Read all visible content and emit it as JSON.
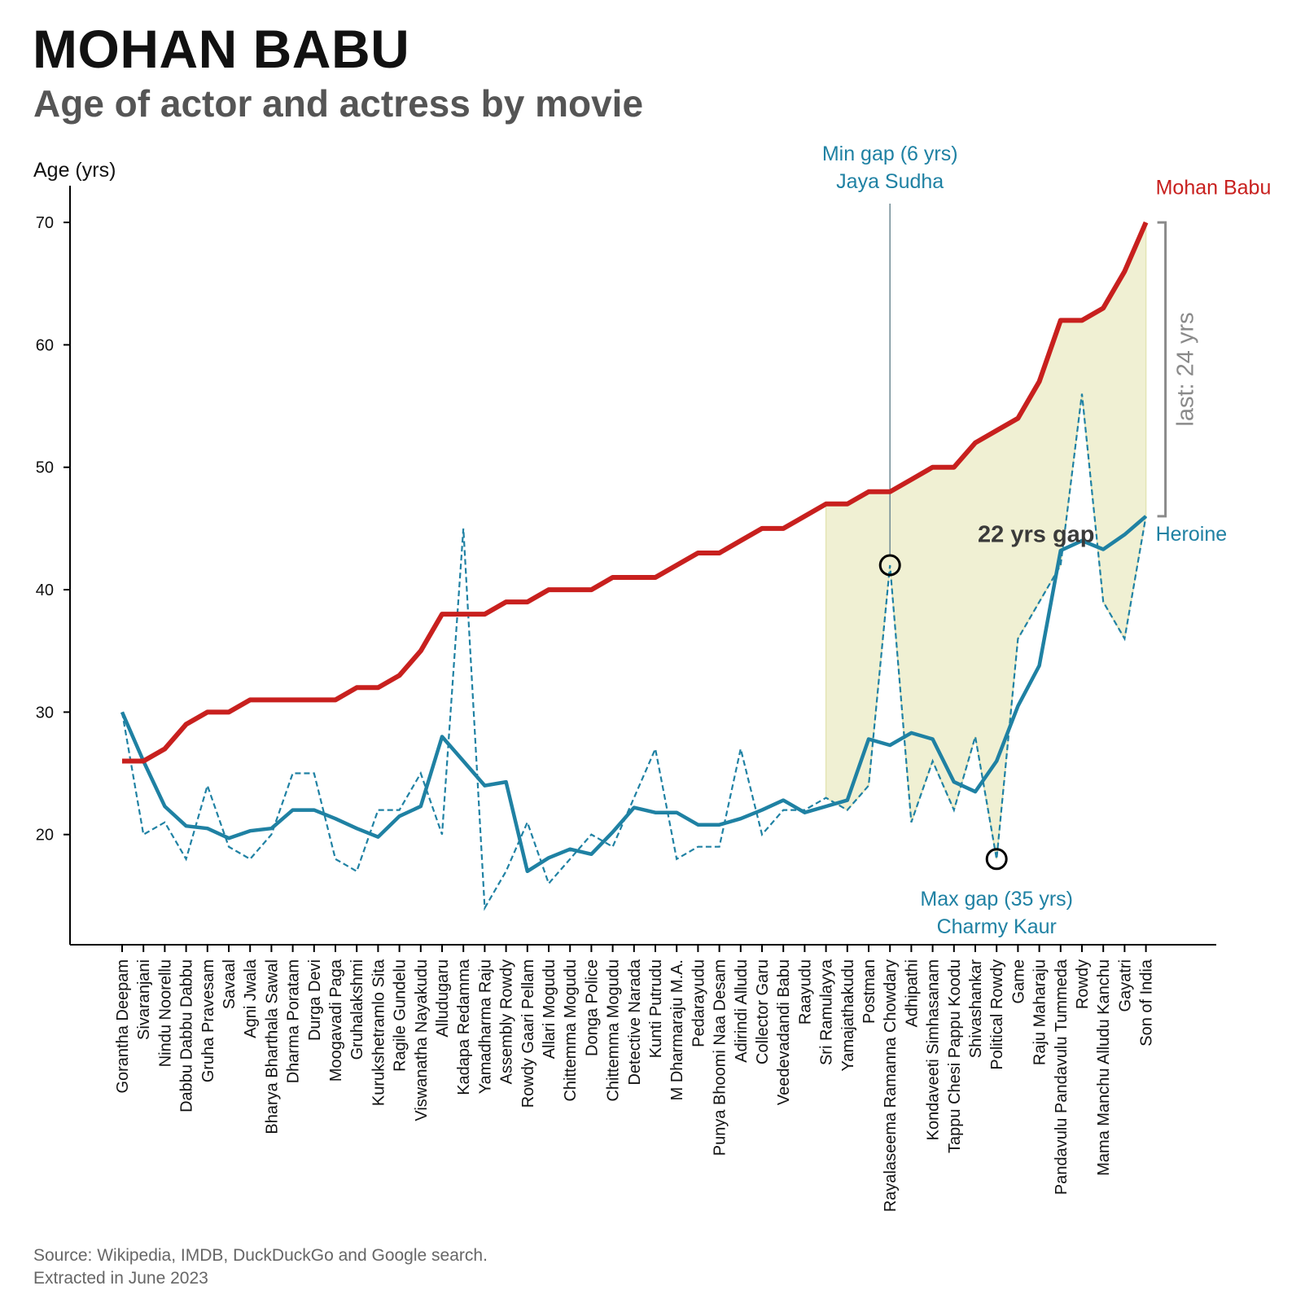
{
  "header": {
    "title": "MOHAN BABU",
    "subtitle": "Age of actor and actress by movie"
  },
  "footer": {
    "source_line1": "Source: Wikipedia, IMDB, DuckDuckGo and Google search.",
    "source_line2": "Extracted in June 2023"
  },
  "colors": {
    "actor": "#c8201e",
    "heroine": "#1f81a3",
    "fill": "#eeeecc",
    "bracket": "#8a8a8a",
    "annotation_line": "#6f8a94"
  },
  "chart_data": {
    "type": "line",
    "ylabel": "Age (yrs)",
    "xlabel": "",
    "ylim": [
      11,
      73
    ],
    "yticks": [
      20,
      30,
      40,
      50,
      60,
      70
    ],
    "grid": false,
    "categories": [
      "Gorantha Deepam",
      "Sivaranjani",
      "Nindu Noorellu",
      "Dabbu Dabbu Dabbu",
      "Gruha Pravesam",
      "Savaal",
      "Agni Jwala",
      "Bharya Bharthala Sawal",
      "Dharma Poratam",
      "Durga Devi",
      "Moogavadi Paga",
      "Gruhalakshmi",
      "Kurukshetramlo Sita",
      "Ragile Gundelu",
      "Viswanatha Nayakudu",
      "Alludugaru",
      "Kadapa Redamma",
      "Yamadharma Raju",
      "Assembly Rowdy",
      "Rowdy Gaari Pellam",
      "Allari Mogudu",
      "Chittemma Mogudu",
      "Donga Police",
      "Chittemma Mogudu",
      "Detective Narada",
      "Kunti Putrudu",
      "M Dharmaraju M.A.",
      "Pedarayudu",
      "Punya Bhoomi Naa Desam",
      "Adirindi Alludu",
      "Collector Garu",
      "Veedevadandi Babu",
      "Raayudu",
      "Sri Ramulayya",
      "Yamajathakudu",
      "Postman",
      "Rayalaseema Ramanna Chowdary",
      "Adhipathi",
      "Kondaveeti Simhasanam",
      "Tappu Chesi Pappu Koodu",
      "Shivashankar",
      "Political Rowdy",
      "Game",
      "Raju Maharaju",
      "Pandavulu Pandavulu Tummeda",
      "Rowdy",
      "Mama Manchu Alludu Kanchu",
      "Gayatri",
      "Son of India"
    ],
    "series": [
      {
        "name": "Mohan Babu",
        "style": "thick",
        "values": [
          26,
          26,
          27,
          29,
          30,
          30,
          31,
          31,
          31,
          31,
          31,
          32,
          32,
          33,
          35,
          38,
          38,
          38,
          39,
          39,
          40,
          40,
          40,
          41,
          41,
          41,
          42,
          43,
          43,
          44,
          45,
          45,
          46,
          47,
          47,
          48,
          48,
          49,
          50,
          50,
          52,
          53,
          54,
          57,
          62,
          62,
          63,
          66,
          70
        ]
      },
      {
        "name": "Heroine",
        "style": "thick-smoothed",
        "values": [
          30,
          26,
          22.3,
          20.7,
          20.5,
          19.7,
          20.3,
          20.5,
          22,
          22,
          21.3,
          20.5,
          19.8,
          21.5,
          22.3,
          28,
          26,
          24,
          24.3,
          17,
          18.1,
          18.8,
          18.4,
          20.2,
          22.2,
          21.8,
          21.8,
          20.8,
          20.8,
          21.3,
          22,
          22.8,
          21.8,
          22.3,
          22.8,
          27.8,
          27.3,
          28.3,
          27.8,
          24.3,
          23.5,
          26,
          30.5,
          33.8,
          43.2,
          44,
          43.3,
          44.5,
          46
        ]
      },
      {
        "name": "",
        "style": "dashed-raw",
        "values": [
          30,
          20,
          21,
          18,
          24,
          19,
          18,
          20,
          25,
          25,
          18,
          17,
          22,
          22,
          25,
          20,
          45,
          14,
          17,
          21,
          16,
          18,
          20,
          19,
          23,
          27,
          18,
          19,
          19,
          27,
          20,
          22,
          22,
          23,
          22,
          24,
          42,
          21,
          26,
          22,
          28,
          18,
          36,
          39,
          42,
          56,
          39,
          36,
          46
        ]
      }
    ],
    "gap_fill_range": [
      "Sri Ramulayya",
      "Son of India"
    ],
    "series_labels": {
      "actor": "Mohan Babu",
      "heroine": "Heroine"
    },
    "annotations": {
      "min_gap_line1": "Min gap (6 yrs)",
      "min_gap_line2": "Jaya Sudha",
      "min_gap_point": {
        "category": "Rayalaseema Ramanna Chowdary",
        "value": 42
      },
      "max_gap_line1": "Max gap (35 yrs)",
      "max_gap_line2": "Charmy Kaur",
      "max_gap_point": {
        "category": "Political Rowdy",
        "value": 18
      },
      "gap_label": "22 yrs gap",
      "last_gap_label": "last: 24 yrs"
    }
  }
}
